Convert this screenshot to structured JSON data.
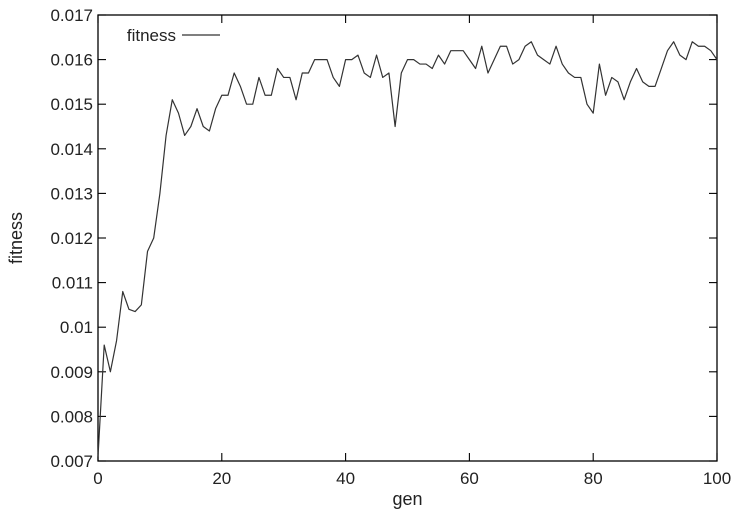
{
  "chart_data": {
    "type": "line",
    "xlabel": "gen",
    "ylabel": "fitness",
    "xlim": [
      0,
      100
    ],
    "ylim": [
      0.007,
      0.017
    ],
    "x_ticks": [
      0,
      20,
      40,
      60,
      80,
      100
    ],
    "x_tick_labels": [
      "0",
      "20",
      "40",
      "60",
      "80",
      "100"
    ],
    "y_ticks": [
      0.007,
      0.008,
      0.009,
      0.01,
      0.011,
      0.012,
      0.013,
      0.014,
      0.015,
      0.016,
      0.017
    ],
    "y_tick_labels": [
      "0.007",
      "0.008",
      "0.009",
      "0.01",
      "0.011",
      "0.012",
      "0.013",
      "0.014",
      "0.015",
      "0.016",
      "0.017"
    ],
    "grid": false,
    "legend_position": "top-left",
    "series": [
      {
        "name": "fitness",
        "color": "#333333",
        "x": [
          0,
          1,
          2,
          3,
          4,
          5,
          6,
          7,
          8,
          9,
          10,
          11,
          12,
          13,
          14,
          15,
          16,
          17,
          18,
          19,
          20,
          21,
          22,
          23,
          24,
          25,
          26,
          27,
          28,
          29,
          30,
          31,
          32,
          33,
          34,
          35,
          36,
          37,
          38,
          39,
          40,
          41,
          42,
          43,
          44,
          45,
          46,
          47,
          48,
          49,
          50,
          51,
          52,
          53,
          54,
          55,
          56,
          57,
          58,
          59,
          60,
          61,
          62,
          63,
          64,
          65,
          66,
          67,
          68,
          69,
          70,
          71,
          72,
          73,
          74,
          75,
          76,
          77,
          78,
          79,
          80,
          81,
          82,
          83,
          84,
          85,
          86,
          87,
          88,
          89,
          90,
          91,
          92,
          93,
          94,
          95,
          96,
          97,
          98,
          99,
          100
        ],
        "values": [
          0.0071,
          0.0096,
          0.009,
          0.0097,
          0.0108,
          0.0104,
          0.01035,
          0.0105,
          0.0117,
          0.012,
          0.013,
          0.0143,
          0.0151,
          0.0148,
          0.0143,
          0.0145,
          0.0149,
          0.0145,
          0.0144,
          0.0149,
          0.0152,
          0.0152,
          0.0157,
          0.0154,
          0.015,
          0.015,
          0.0156,
          0.0152,
          0.0152,
          0.0158,
          0.0156,
          0.0156,
          0.0151,
          0.0157,
          0.0157,
          0.016,
          0.016,
          0.016,
          0.0156,
          0.0154,
          0.016,
          0.016,
          0.0161,
          0.0157,
          0.0156,
          0.0161,
          0.0156,
          0.0157,
          0.0145,
          0.0157,
          0.016,
          0.016,
          0.0159,
          0.0159,
          0.0158,
          0.0161,
          0.0159,
          0.0162,
          0.0162,
          0.0162,
          0.016,
          0.0158,
          0.0163,
          0.0157,
          0.016,
          0.0163,
          0.0163,
          0.0159,
          0.016,
          0.0163,
          0.0164,
          0.0161,
          0.016,
          0.0159,
          0.0163,
          0.0159,
          0.0157,
          0.0156,
          0.0156,
          0.015,
          0.0148,
          0.0159,
          0.0152,
          0.0156,
          0.0155,
          0.0151,
          0.0155,
          0.0158,
          0.0155,
          0.0154,
          0.0154,
          0.0158,
          0.0162,
          0.0164,
          0.0161,
          0.016,
          0.0164,
          0.0163,
          0.0163,
          0.0162,
          0.016
        ]
      }
    ]
  }
}
